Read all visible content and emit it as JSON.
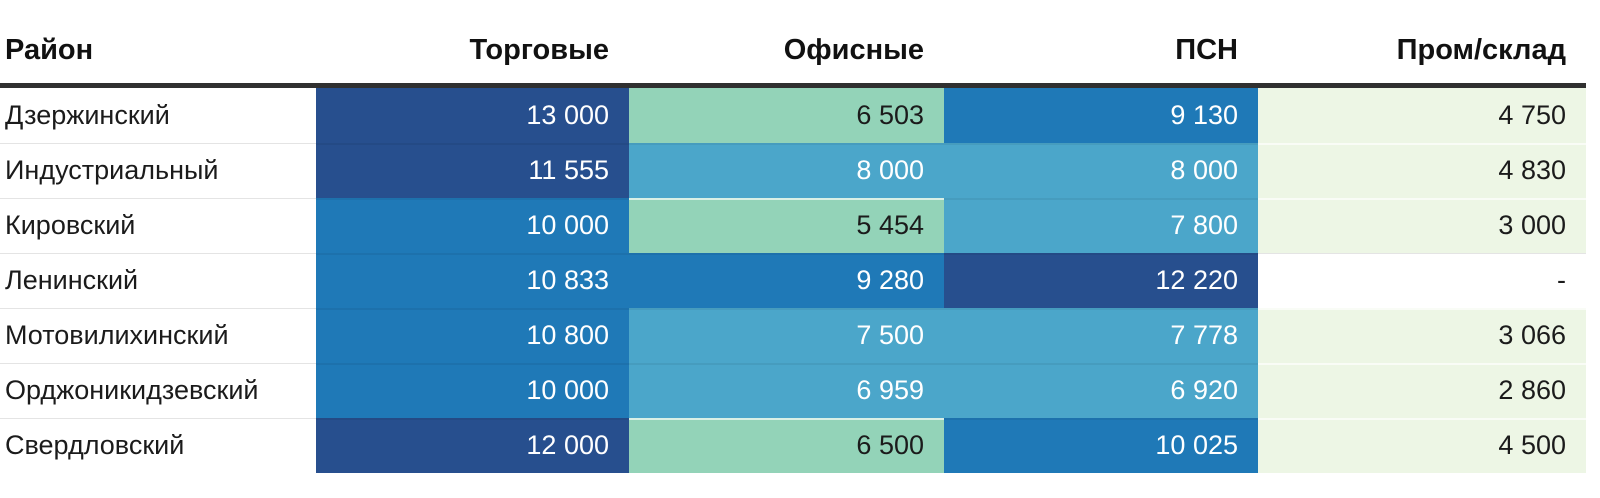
{
  "palette": {
    "dark_blue": "#274F8E",
    "mid_blue": "#1F79B7",
    "light_blue": "#4BA6CA",
    "green": "#93D3B8",
    "pale_green": "#EDF6E5",
    "header_rule": "#303030",
    "header_text": "#111111",
    "text_dark": "#1B1B1B",
    "text_light": "#FFFFFF"
  },
  "table": {
    "columns": [
      {
        "key": "district",
        "label": "Район"
      },
      {
        "key": "retail",
        "label": "Торговые"
      },
      {
        "key": "office",
        "label": "Офисные"
      },
      {
        "key": "psn",
        "label": "ПСН"
      },
      {
        "key": "industrial",
        "label": "Пром/склад"
      }
    ],
    "rows": [
      {
        "district": "Дзержинский",
        "cells": [
          {
            "value": "13 000",
            "tone": "dark_blue"
          },
          {
            "value": "6 503",
            "tone": "green"
          },
          {
            "value": "9 130",
            "tone": "mid_blue"
          },
          {
            "value": "4 750",
            "tone": "pale_green"
          }
        ]
      },
      {
        "district": "Индустриальный",
        "cells": [
          {
            "value": "11 555",
            "tone": "dark_blue"
          },
          {
            "value": "8 000",
            "tone": "light_blue"
          },
          {
            "value": "8 000",
            "tone": "light_blue"
          },
          {
            "value": "4 830",
            "tone": "pale_green"
          }
        ]
      },
      {
        "district": "Кировский",
        "cells": [
          {
            "value": "10 000",
            "tone": "mid_blue"
          },
          {
            "value": "5 454",
            "tone": "green"
          },
          {
            "value": "7 800",
            "tone": "light_blue"
          },
          {
            "value": "3 000",
            "tone": "pale_green"
          }
        ]
      },
      {
        "district": "Ленинский",
        "cells": [
          {
            "value": "10 833",
            "tone": "mid_blue"
          },
          {
            "value": "9 280",
            "tone": "mid_blue"
          },
          {
            "value": "12 220",
            "tone": "dark_blue"
          },
          {
            "value": "-",
            "tone": "none"
          }
        ]
      },
      {
        "district": "Мотовилихинский",
        "cells": [
          {
            "value": "10 800",
            "tone": "mid_blue"
          },
          {
            "value": "7 500",
            "tone": "light_blue"
          },
          {
            "value": "7 778",
            "tone": "light_blue"
          },
          {
            "value": "3 066",
            "tone": "pale_green"
          }
        ]
      },
      {
        "district": "Орджоникидзевский",
        "cells": [
          {
            "value": "10 000",
            "tone": "mid_blue"
          },
          {
            "value": "6 959",
            "tone": "light_blue"
          },
          {
            "value": "6 920",
            "tone": "light_blue"
          },
          {
            "value": "2 860",
            "tone": "pale_green"
          }
        ]
      },
      {
        "district": "Свердловский",
        "cells": [
          {
            "value": "12 000",
            "tone": "dark_blue"
          },
          {
            "value": "6 500",
            "tone": "green"
          },
          {
            "value": "10 025",
            "tone": "mid_blue"
          },
          {
            "value": "4 500",
            "tone": "pale_green"
          }
        ]
      }
    ]
  },
  "chart_data": {
    "type": "heatmap",
    "title": "",
    "categories": [
      "Дзержинский",
      "Индустриальный",
      "Кировский",
      "Ленинский",
      "Мотовилихинский",
      "Орджоникидзевский",
      "Свердловский"
    ],
    "series": [
      {
        "name": "Торговые",
        "values": [
          13000,
          11555,
          10000,
          10833,
          10800,
          10000,
          12000
        ]
      },
      {
        "name": "Офисные",
        "values": [
          6503,
          8000,
          5454,
          9280,
          7500,
          6959,
          6500
        ]
      },
      {
        "name": "ПСН",
        "values": [
          9130,
          8000,
          7800,
          12220,
          7778,
          6920,
          10025
        ]
      },
      {
        "name": "Пром/склад",
        "values": [
          4750,
          4830,
          3000,
          null,
          3066,
          2860,
          4500
        ]
      }
    ],
    "legend_position": "none",
    "grid": false,
    "color_scale": "pale green (low) to dark blue (high); missing value shown as '-' on white"
  }
}
